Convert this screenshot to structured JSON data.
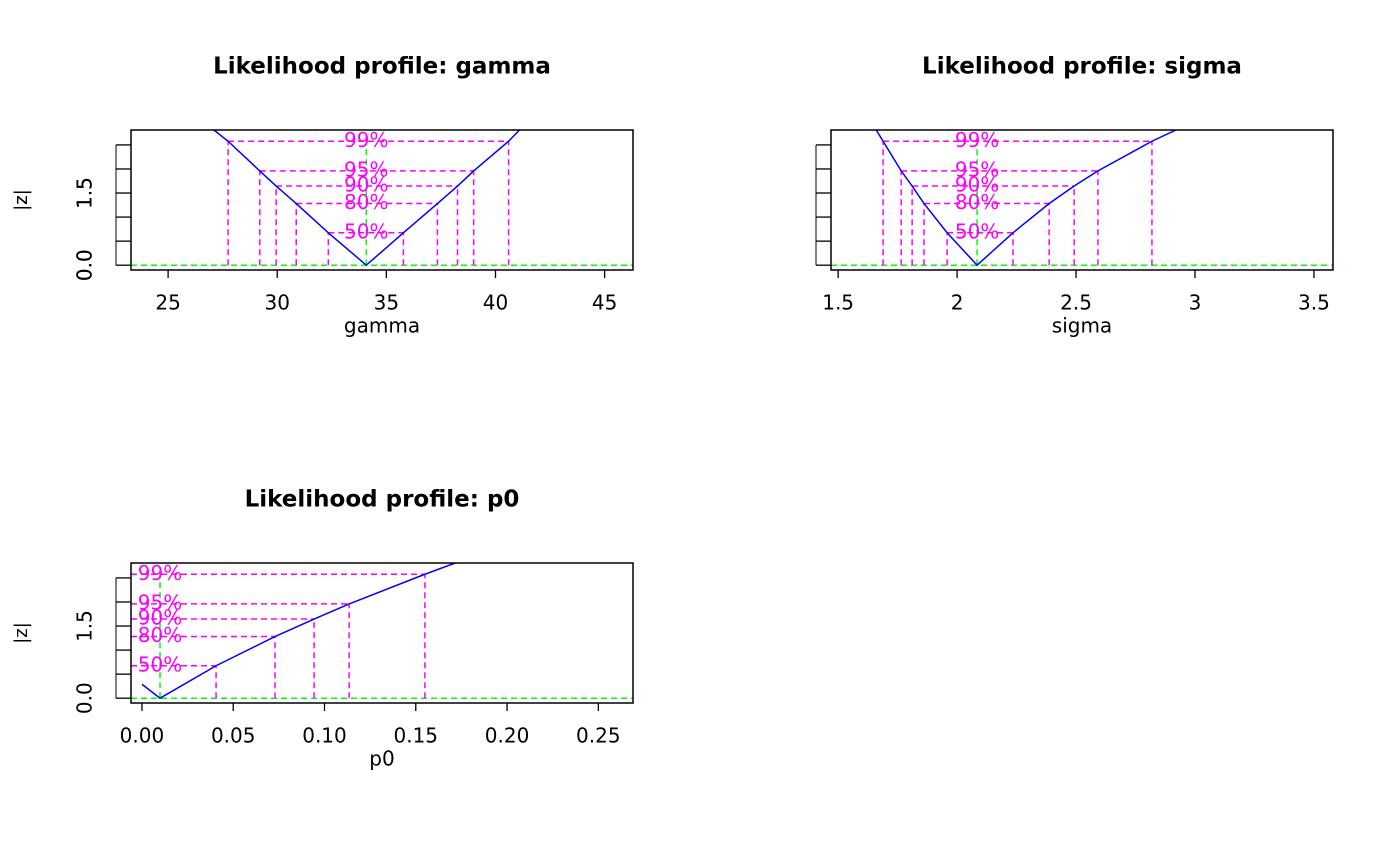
{
  "chart_data": [
    {
      "type": "line",
      "title": "Likelihood profile: gamma",
      "x_label": "gamma",
      "y_label": "|z|",
      "x": [
        27.1,
        27.75,
        29.2,
        29.95,
        30.87,
        32.34,
        34.08,
        35.78,
        37.34,
        38.26,
        39.0,
        40.6,
        41.1
      ],
      "values": [
        2.81,
        2.576,
        1.96,
        1.645,
        1.2816,
        0.674,
        0,
        0.674,
        1.2816,
        1.645,
        1.96,
        2.576,
        2.81
      ],
      "color": "#0000ff",
      "xlim": [
        23.3,
        46.3
      ],
      "xticks": [
        25,
        30,
        35,
        40,
        45
      ],
      "ylim": [
        -0.1,
        2.81
      ],
      "yticks": [
        {
          "value": 0,
          "label": "0.0"
        },
        {
          "value": 1.5,
          "label": "1.5"
        }
      ],
      "yticks_minor": [
        0.5,
        1,
        2,
        2.5
      ],
      "levels_color": "#ff00ff",
      "levels": [
        {
          "label": "99%",
          "value": 2.576,
          "lower": 27.75,
          "upper": 40.6
        },
        {
          "label": "95%",
          "value": 1.96,
          "lower": 29.2,
          "upper": 39.0
        },
        {
          "label": "90%",
          "value": 1.645,
          "lower": 29.95,
          "upper": 38.26
        },
        {
          "label": "80%",
          "value": 1.2816,
          "lower": 30.87,
          "upper": 37.34
        },
        {
          "label": "50%",
          "value": 0.674,
          "lower": 32.34,
          "upper": 35.78
        }
      ],
      "mle": 34.08,
      "hline": 0,
      "ref_color": "#00ff00"
    },
    {
      "type": "line",
      "title": "Likelihood profile: sigma",
      "x_label": "sigma",
      "y_label": "|z|",
      "x": [
        1.66,
        1.689,
        1.765,
        1.811,
        1.861,
        1.958,
        2.084,
        2.235,
        2.387,
        2.492,
        2.592,
        2.819,
        2.92
      ],
      "values": [
        2.81,
        2.576,
        1.96,
        1.645,
        1.2816,
        0.674,
        0,
        0.674,
        1.2816,
        1.645,
        1.96,
        2.576,
        2.81
      ],
      "color": "#0000ff",
      "xlim": [
        1.47,
        3.58
      ],
      "xticks": [
        1.5,
        2.0,
        2.5,
        3.0,
        3.5
      ],
      "ylim": [
        -0.1,
        2.81
      ],
      "yticks": [
        {
          "value": 0,
          "label": "0.0"
        },
        {
          "value": 1.5,
          "label": "1.5"
        }
      ],
      "yticks_minor": [
        0.5,
        1,
        2,
        2.5
      ],
      "levels_color": "#ff00ff",
      "levels": [
        {
          "label": "99%",
          "value": 2.576,
          "lower": 1.689,
          "upper": 2.819
        },
        {
          "label": "95%",
          "value": 1.96,
          "lower": 1.765,
          "upper": 2.592
        },
        {
          "label": "90%",
          "value": 1.645,
          "lower": 1.811,
          "upper": 2.492
        },
        {
          "label": "80%",
          "value": 1.2816,
          "lower": 1.861,
          "upper": 2.387
        },
        {
          "label": "50%",
          "value": 0.674,
          "lower": 1.958,
          "upper": 2.235
        }
      ],
      "mle": 2.084,
      "hline": 0,
      "ref_color": "#00ff00"
    },
    {
      "type": "line",
      "title": "Likelihood profile: p0",
      "x_label": "p0",
      "y_label": "|z|",
      "x": [
        0.0,
        0.0099,
        0.0406,
        0.0729,
        0.0943,
        0.1135,
        0.155,
        0.1716
      ],
      "values": [
        0.29,
        0,
        0.674,
        1.2816,
        1.645,
        1.96,
        2.576,
        2.81
      ],
      "color": "#0000ff",
      "xlim": [
        -0.006,
        0.269
      ],
      "xticks": [
        {
          "value": 0,
          "label": "0.00"
        },
        0.05,
        {
          "value": 0.1,
          "label": "0.10"
        },
        0.15,
        {
          "value": 0.2,
          "label": "0.20"
        },
        0.25
      ],
      "ylim": [
        -0.1,
        2.81
      ],
      "yticks": [
        {
          "value": 0,
          "label": "0.0"
        },
        {
          "value": 1.5,
          "label": "1.5"
        }
      ],
      "yticks_minor": [
        0.5,
        1,
        2,
        2.5
      ],
      "levels_color": "#ff00ff",
      "levels": [
        {
          "label": "99%",
          "value": 2.576,
          "lower": null,
          "upper": 0.155
        },
        {
          "label": "95%",
          "value": 1.96,
          "lower": null,
          "upper": 0.1135
        },
        {
          "label": "90%",
          "value": 1.645,
          "lower": null,
          "upper": 0.0943
        },
        {
          "label": "80%",
          "value": 1.2816,
          "lower": null,
          "upper": 0.0729
        },
        {
          "label": "50%",
          "value": 0.674,
          "lower": null,
          "upper": 0.0406
        }
      ],
      "mle": 0.0099,
      "hline": 0,
      "ref_color": "#00ff00"
    }
  ]
}
